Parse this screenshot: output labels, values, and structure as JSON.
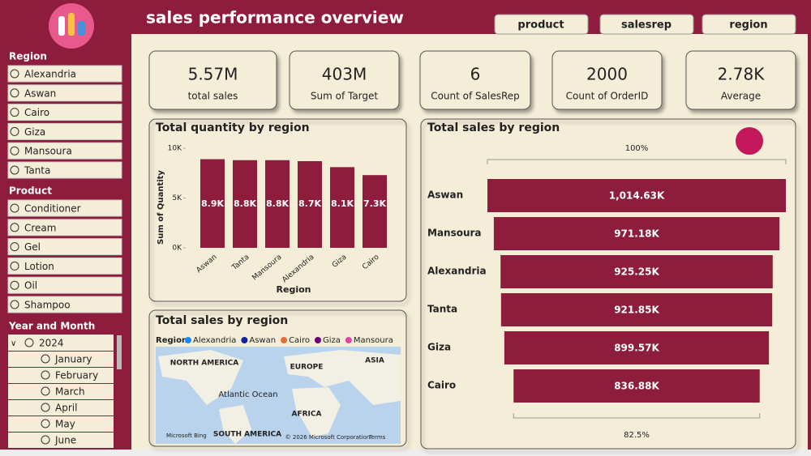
{
  "header": {
    "title": "sales performance overview",
    "tabs": [
      "product",
      "salesrep",
      "region"
    ]
  },
  "sidebar": {
    "sections": [
      {
        "title": "Region",
        "items": [
          "Alexandria",
          "Aswan",
          "Cairo",
          "Giza",
          "Mansoura",
          "Tanta"
        ]
      },
      {
        "title": "Product",
        "items": [
          "Conditioner",
          "Cream",
          "Gel",
          "Lotion",
          "Oil",
          "Shampoo"
        ]
      },
      {
        "title": "Year and Month",
        "year": "2024",
        "items": [
          "January",
          "February",
          "March",
          "April",
          "May",
          "June"
        ]
      }
    ]
  },
  "kpis": [
    {
      "value": "5.57M",
      "label": "total sales"
    },
    {
      "value": "403M",
      "label": "Sum of Target"
    },
    {
      "value": "6",
      "label": "Count of SalesRep"
    },
    {
      "value": "2000",
      "label": "Count of OrderID"
    },
    {
      "value": "2.78K",
      "label": "Average"
    }
  ],
  "map": {
    "title": "Total sales by region",
    "legend_title": "Region",
    "legend": [
      {
        "name": "Alexandria",
        "color": "#118dff"
      },
      {
        "name": "Aswan",
        "color": "#12239e"
      },
      {
        "name": "Cairo",
        "color": "#e66c37"
      },
      {
        "name": "Giza",
        "color": "#6b007b"
      },
      {
        "name": "Mansoura",
        "color": "#e044a7"
      }
    ],
    "labels": [
      "NORTH AMERICA",
      "EUROPE",
      "ASIA",
      "Atlantic Ocean",
      "AFRICA",
      "SOUTH AMERICA"
    ],
    "footer": [
      "Microsoft Bing",
      "© 2026 Microsoft Corporation",
      "Terms"
    ]
  },
  "chart_data": [
    {
      "type": "bar",
      "title": "Total quantity by region",
      "x_label": "Region",
      "y_label": "Sum of Quantity",
      "categories": [
        "Aswan",
        "Tanta",
        "Mansoura",
        "Alexandria",
        "Giza",
        "Cairo"
      ],
      "values": [
        8900,
        8800,
        8800,
        8700,
        8100,
        7300
      ],
      "value_labels": [
        "8.9K",
        "8.8K",
        "8.8K",
        "8.7K",
        "8.1K",
        "7.3K"
      ],
      "color": "#8d1c3d",
      "ylim": [
        0,
        10000
      ],
      "yticks": [
        {
          "value": 0,
          "label": "0K"
        },
        {
          "value": 5000,
          "label": "5K"
        },
        {
          "value": 10000,
          "label": "10K"
        }
      ]
    },
    {
      "type": "funnel",
      "title": "Total sales by region",
      "top_label": "100%",
      "bottom_label": "82.5%",
      "categories": [
        "Aswan",
        "Mansoura",
        "Alexandria",
        "Tanta",
        "Giza",
        "Cairo"
      ],
      "values": [
        1014630,
        971180,
        925250,
        921850,
        899570,
        836880
      ],
      "value_labels": [
        "1,014.63K",
        "971.18K",
        "925.25K",
        "921.85K",
        "899.57K",
        "836.88K"
      ],
      "color": "#8d1c3d"
    }
  ]
}
